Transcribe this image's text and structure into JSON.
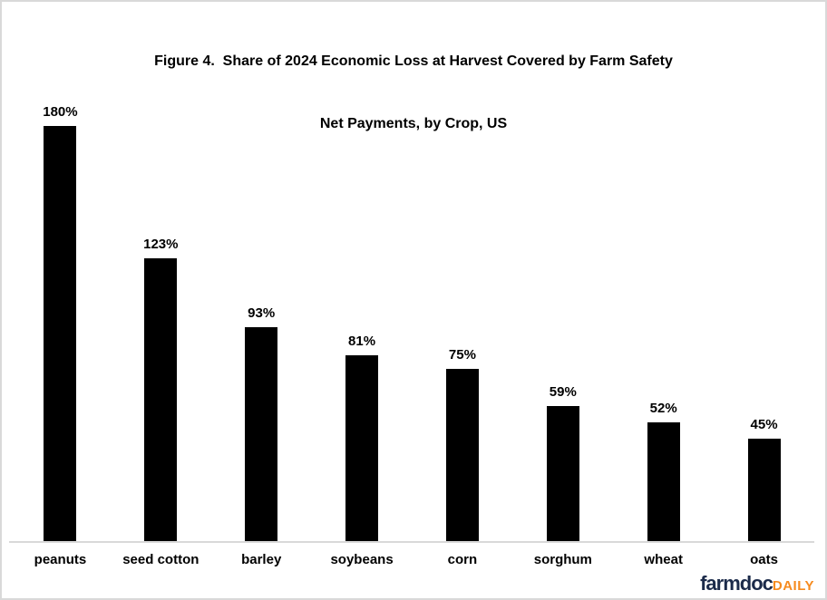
{
  "title": {
    "line1": "Figure 4.  Share of 2024 Economic Loss at Harvest Covered by Farm Safety",
    "line2": "Net Payments, by Crop, US"
  },
  "chart_data": {
    "type": "bar",
    "title": "Figure 4.  Share of 2024 Economic Loss at Harvest Covered by Farm Safety Net Payments, by Crop, US",
    "categories": [
      "peanuts",
      "seed cotton",
      "barley",
      "soybeans",
      "corn",
      "sorghum",
      "wheat",
      "oats"
    ],
    "values": [
      180,
      123,
      93,
      81,
      75,
      59,
      52,
      45
    ],
    "value_labels": [
      "180%",
      "123%",
      "93%",
      "81%",
      "75%",
      "59%",
      "52%",
      "45%"
    ],
    "xlabel": "",
    "ylabel": "",
    "ylim": [
      0,
      195
    ],
    "grid": false,
    "legend": "none",
    "bar_color": "#000000",
    "label_color": "#000000",
    "axis_line_color": "#d9d9d9"
  },
  "branding": {
    "farmdoc_text": "farmdoc",
    "daily_text": "DAILY",
    "farmdoc_color": "#1b2a4a",
    "daily_color": "#f68b1f"
  }
}
